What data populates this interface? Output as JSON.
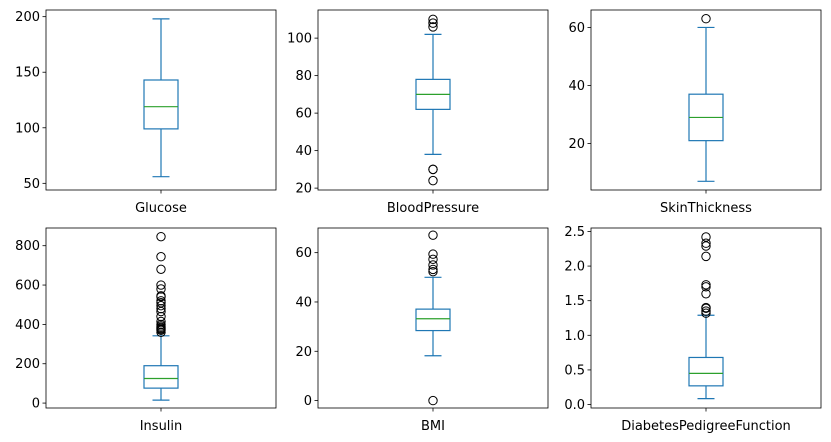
{
  "colors": {
    "box": "#1f77b4",
    "median": "#2ca02c",
    "flier": "#000000",
    "frame": "#000000"
  },
  "chart_data": [
    {
      "type": "box",
      "xlabel": "Glucose",
      "ylim": [
        44,
        206
      ],
      "yticks": [
        50,
        100,
        150,
        200
      ],
      "stats": {
        "whislo": 56,
        "q1": 99,
        "med": 119,
        "q3": 143,
        "whishi": 198
      },
      "fliers": []
    },
    {
      "type": "box",
      "xlabel": "BloodPressure",
      "ylim": [
        19,
        115
      ],
      "yticks": [
        20,
        40,
        60,
        80,
        100
      ],
      "stats": {
        "whislo": 38,
        "q1": 62,
        "med": 70,
        "q3": 78,
        "whishi": 102
      },
      "fliers": [
        24,
        30,
        30,
        106,
        108,
        110
      ]
    },
    {
      "type": "box",
      "xlabel": "SkinThickness",
      "ylim": [
        4,
        66
      ],
      "yticks": [
        20,
        40,
        60
      ],
      "stats": {
        "whislo": 7,
        "q1": 21,
        "med": 29,
        "q3": 37,
        "whishi": 60
      },
      "fliers": [
        63
      ]
    },
    {
      "type": "box",
      "xlabel": "Insulin",
      "ylim": [
        -25,
        890
      ],
      "yticks": [
        0,
        200,
        400,
        600,
        800
      ],
      "stats": {
        "whislo": 15,
        "q1": 76,
        "med": 125,
        "q3": 190,
        "whishi": 342
      },
      "fliers": [
        360,
        370,
        375,
        380,
        385,
        392,
        400,
        415,
        440,
        465,
        480,
        495,
        510,
        520,
        540,
        545,
        580,
        600,
        680,
        744,
        846
      ]
    },
    {
      "type": "box",
      "xlabel": "BMI",
      "ylim": [
        -3,
        70
      ],
      "yticks": [
        0,
        20,
        40,
        60
      ],
      "stats": {
        "whislo": 18.2,
        "q1": 28.4,
        "med": 33.2,
        "q3": 37.1,
        "whishi": 50
      },
      "fliers": [
        0,
        52.3,
        53.2,
        55,
        57.3,
        59.4,
        67.1
      ]
    },
    {
      "type": "box",
      "xlabel": "DiabetesPedigreeFunction",
      "ylim": [
        -0.05,
        2.55
      ],
      "yticks": [
        0.0,
        0.5,
        1.0,
        1.5,
        2.0,
        2.5
      ],
      "ytick_labels": [
        "0.0",
        "0.5",
        "1.0",
        "1.5",
        "2.0",
        "2.5"
      ],
      "stats": {
        "whislo": 0.085,
        "q1": 0.27,
        "med": 0.45,
        "q3": 0.68,
        "whishi": 1.29
      },
      "fliers": [
        1.32,
        1.35,
        1.39,
        1.4,
        1.6,
        1.7,
        1.73,
        2.14,
        2.29,
        2.33,
        2.42
      ]
    }
  ]
}
